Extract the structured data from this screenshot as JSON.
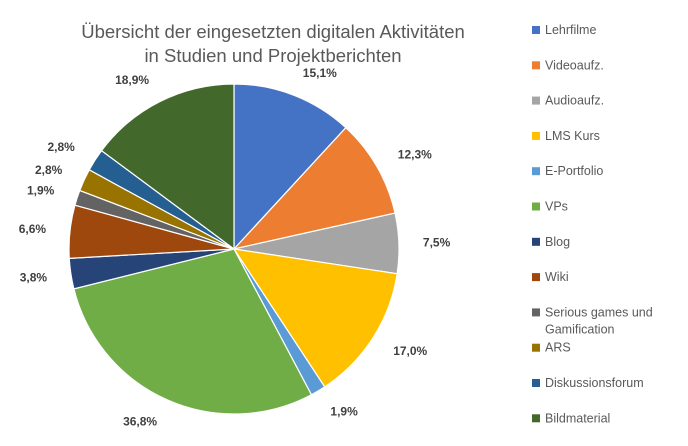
{
  "chart_data": {
    "type": "pie",
    "title": "Übersicht der eingesetzten digitalen Aktivitäten in Studien und Projektberichten",
    "title_lines": [
      "Übersicht der eingesetzten digitalen Aktivitäten",
      "in Studien und Projektberichten"
    ],
    "legend_position": "right",
    "slices": [
      {
        "name": "Lehrfilme",
        "value": 15.1,
        "label": "15,1%",
        "color": "#4472C4"
      },
      {
        "name": "Videoaufz.",
        "value": 12.3,
        "label": "12,3%",
        "color": "#ED7D31"
      },
      {
        "name": "Audioaufz.",
        "value": 7.5,
        "label": "7,5%",
        "color": "#A5A5A5"
      },
      {
        "name": "LMS Kurs",
        "value": 17.0,
        "label": "17,0%",
        "color": "#FFC000"
      },
      {
        "name": "E-Portfolio",
        "value": 1.9,
        "label": "1,9%",
        "color": "#5B9BD5"
      },
      {
        "name": "VPs",
        "value": 36.8,
        "label": "36,8%",
        "color": "#70AD47"
      },
      {
        "name": "Blog",
        "value": 3.8,
        "label": "3,8%",
        "color": "#264478"
      },
      {
        "name": "Wiki",
        "value": 6.6,
        "label": "6,6%",
        "color": "#9E480E"
      },
      {
        "name": "Serious games und Gamification",
        "legend_lines": [
          "Serious games und",
          "Gamification"
        ],
        "value": 1.9,
        "label": "1,9%",
        "color": "#636363"
      },
      {
        "name": "ARS",
        "value": 2.8,
        "label": "2,8%",
        "color": "#997300"
      },
      {
        "name": "Diskussionsforum",
        "value": 2.8,
        "label": "2,8%",
        "color": "#255E91"
      },
      {
        "name": "Bildmaterial",
        "value": 18.9,
        "label": "18,9%",
        "color": "#43682B"
      }
    ]
  }
}
